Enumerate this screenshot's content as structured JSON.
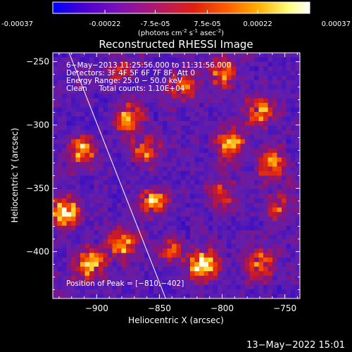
{
  "chart_data": {
    "type": "heatmap",
    "title": "Reconstructed RHESSI Image",
    "colorbar": {
      "ticks": [
        "-0.00037",
        "-0.00022",
        "-7.5e-05",
        "7.5e-05",
        "0.00022",
        "0.00037"
      ],
      "tick_values": [
        -0.00037,
        -0.00022,
        -7.5e-05,
        7.5e-05,
        0.00022,
        0.00037
      ],
      "range": [
        -0.00037,
        0.00037
      ],
      "unit_line_parts": [
        "(photons cm",
        "-2",
        " s",
        "-1",
        " asec",
        "-2",
        ")"
      ],
      "colors": [
        "#0000ff",
        "#4b00d0",
        "#7a10b8",
        "#b01870",
        "#e02010",
        "#ff6000",
        "#ffb000",
        "#ffff80",
        "#ffffff"
      ]
    },
    "xlabel": "Heliocentric X (arcsec)",
    "ylabel": "Heliocentric Y (arcsec)",
    "xlim": [
      -935,
      -738
    ],
    "ylim": [
      -437,
      -243
    ],
    "xticks": [
      -900,
      -850,
      -800,
      -750
    ],
    "xtick_labels": [
      "−900",
      "−850",
      "−800",
      "−750"
    ],
    "yticks": [
      -400,
      -350,
      -300,
      -250
    ],
    "ytick_labels": [
      "−400",
      "−350",
      "−300",
      "−250"
    ],
    "limb_line": [
      [
        -922,
        -243
      ],
      [
        -845,
        -437
      ]
    ],
    "peak_position": [
      -810,
      -402
    ],
    "annotations": [
      "6−May−2013 11:25:56.000 to 11:31:56.000",
      "Detectors: 3F 4F 5F 6F 7F 8F, Att 0",
      "Energy Range: 25.0 − 50.0 keV",
      "Clean     Total counts: 1.10E+04"
    ],
    "peak_label": "Position of Peak = [−810,−402]",
    "hotspots": [
      {
        "x": -910,
        "y": -320,
        "v": 1.0
      },
      {
        "x": -925,
        "y": -370,
        "v": 1.2
      },
      {
        "x": -905,
        "y": -410,
        "v": 1.1
      },
      {
        "x": -875,
        "y": -295,
        "v": 0.9
      },
      {
        "x": -860,
        "y": -320,
        "v": 0.7
      },
      {
        "x": -855,
        "y": -360,
        "v": 0.9
      },
      {
        "x": -880,
        "y": -395,
        "v": 1.0
      },
      {
        "x": -840,
        "y": -400,
        "v": 0.6
      },
      {
        "x": -815,
        "y": -410,
        "v": 1.3
      },
      {
        "x": -830,
        "y": -270,
        "v": 0.8
      },
      {
        "x": -800,
        "y": -260,
        "v": 0.8
      },
      {
        "x": -795,
        "y": -315,
        "v": 1.0
      },
      {
        "x": -800,
        "y": -355,
        "v": 0.7
      },
      {
        "x": -770,
        "y": -290,
        "v": 0.8
      },
      {
        "x": -760,
        "y": -330,
        "v": 0.9
      },
      {
        "x": -755,
        "y": -365,
        "v": 0.6
      },
      {
        "x": -770,
        "y": -410,
        "v": 0.8
      },
      {
        "x": -880,
        "y": -255,
        "v": 0.5
      }
    ]
  },
  "footer": {
    "timestamp": "13−May−2022 15:01"
  }
}
